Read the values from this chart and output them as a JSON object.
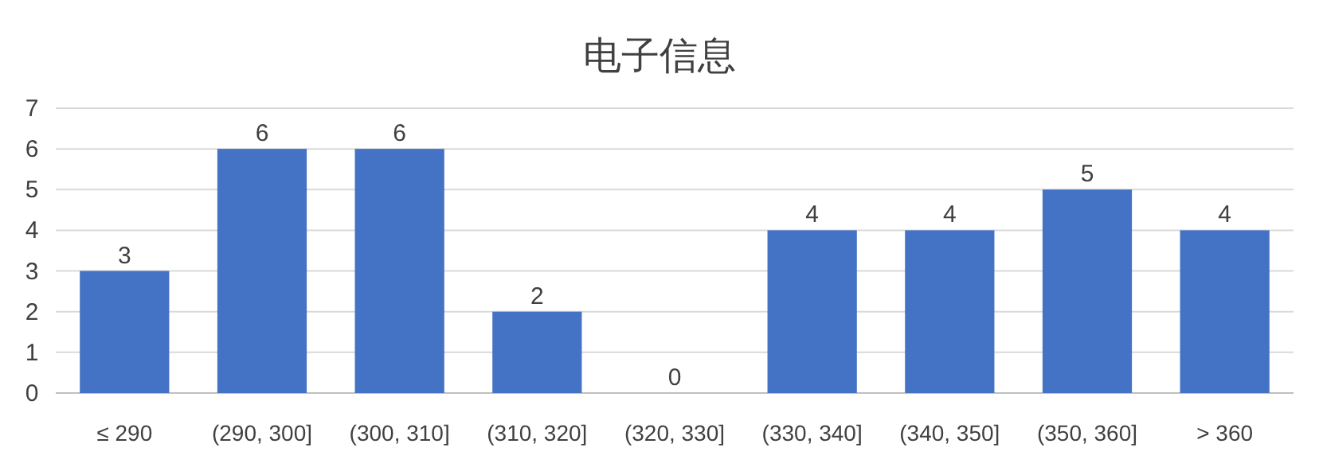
{
  "chart_data": {
    "type": "bar",
    "title": "电子信息",
    "categories": [
      "≤ 290",
      "(290, 300]",
      "(300, 310]",
      "(310, 320]",
      "(320, 330]",
      "(330, 340]",
      "(340, 350]",
      "(350, 360]",
      "> 360"
    ],
    "values": [
      3,
      6,
      6,
      2,
      0,
      4,
      4,
      5,
      4
    ],
    "color": "#4472c4",
    "ylim": [
      0,
      7
    ],
    "yticks": [
      0,
      1,
      2,
      3,
      4,
      5,
      6,
      7
    ],
    "grid": "y",
    "data_labels": true
  }
}
